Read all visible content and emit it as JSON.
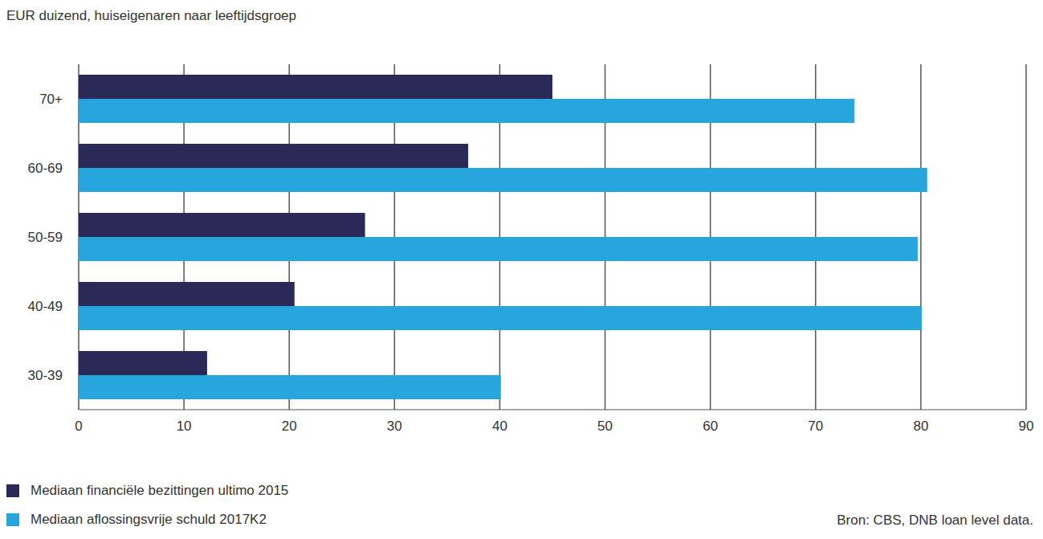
{
  "chart_data": {
    "type": "bar",
    "orientation": "horizontal",
    "title": "EUR duizend, huiseigenaren naar leeftijdsgroep",
    "categories": [
      "70+",
      "60-69",
      "50-59",
      "40-49",
      "30-39"
    ],
    "series": [
      {
        "name": "Mediaan financiële bezittingen ultimo 2015",
        "color": "#2b2958",
        "values": [
          45,
          37,
          27.2,
          20.5,
          12.2
        ]
      },
      {
        "name": "Mediaan aflossingsvrije schuld 2017K2",
        "color": "#27a6de",
        "values": [
          73.7,
          80.6,
          79.7,
          80.1,
          40.1
        ]
      }
    ],
    "xlim": [
      0,
      90
    ],
    "xticks": [
      0,
      10,
      20,
      30,
      40,
      50,
      60,
      70,
      80,
      90
    ],
    "grid": true,
    "legend": "bottom-left",
    "annotations": [
      "Bron: CBS, DNB loan level data."
    ]
  }
}
